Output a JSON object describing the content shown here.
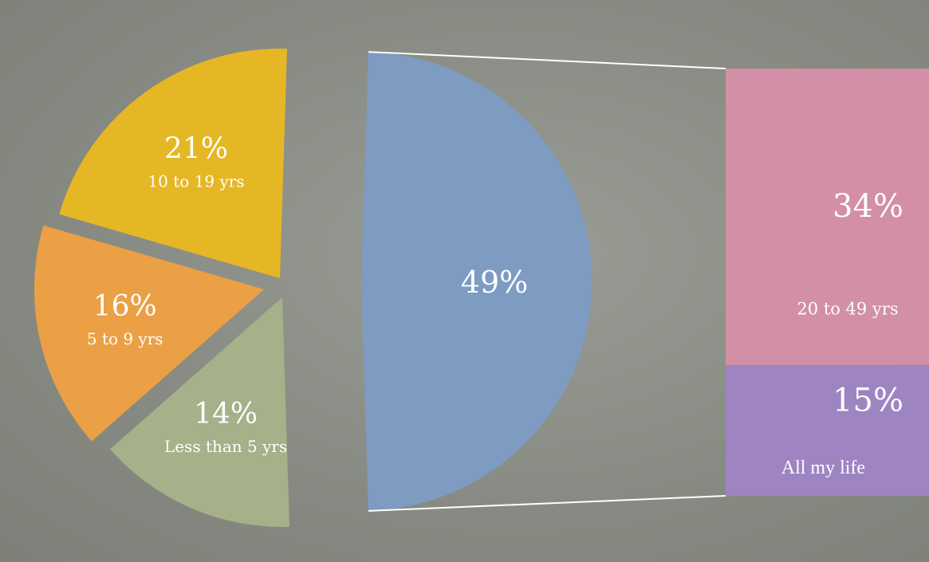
{
  "chart_data": {
    "type": "pie",
    "subtype": "bar-of-pie",
    "pie_slices": [
      {
        "label": "10 to 19 yrs",
        "value_label": "21%",
        "value": 21,
        "color": "#e6b725"
      },
      {
        "label": "5 to 9 yrs",
        "value_label": "16%",
        "value": 16,
        "color": "#eba045"
      },
      {
        "label": "Less than 5 yrs",
        "value_label": "14%",
        "value": 14,
        "color": "#a6b089"
      },
      {
        "label": "",
        "value_label": "49%",
        "value": 49,
        "color": "#7e9bc2"
      }
    ],
    "bar_segments": [
      {
        "label": "20 to 49 yrs",
        "value_label": "34%",
        "value": 34,
        "color": "#d28fa5"
      },
      {
        "label": "All my life",
        "value_label": "15%",
        "value": 15,
        "color": "#9f84c2"
      }
    ]
  }
}
